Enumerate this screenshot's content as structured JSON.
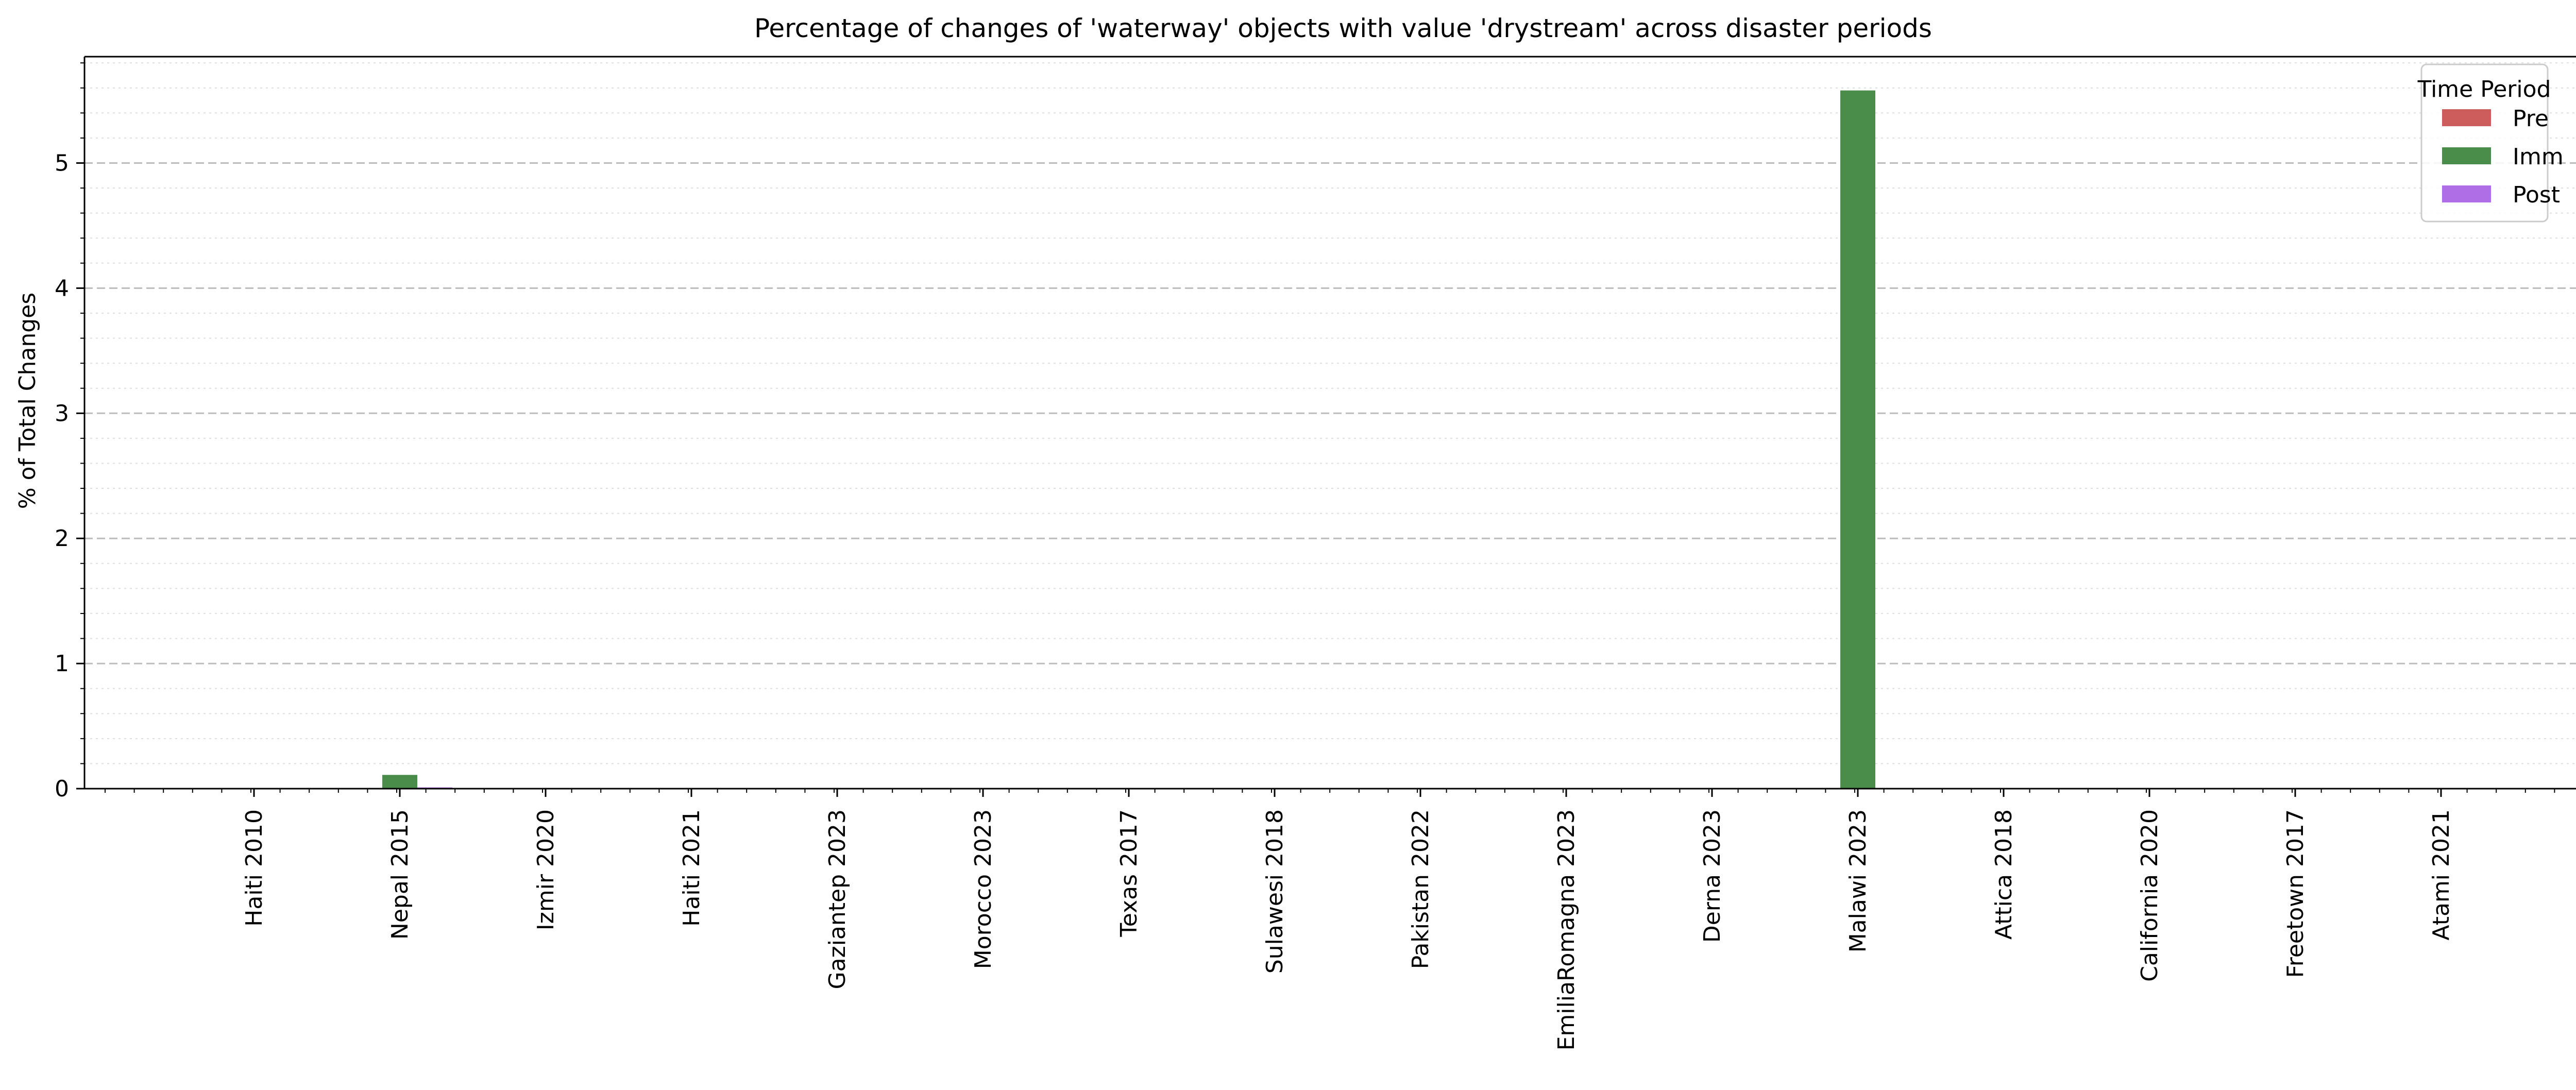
{
  "chart_data": {
    "type": "bar",
    "title": "Percentage of changes of 'waterway' objects with value 'drystream' across disaster periods",
    "xlabel": "",
    "ylabel": "% of Total Changes",
    "categories": [
      "Haiti 2010",
      "Nepal 2015",
      "Izmir 2020",
      "Haiti 2021",
      "Gaziantep 2023",
      "Morocco 2023",
      "Texas 2017",
      "Sulawesi 2018",
      "Pakistan 2022",
      "EmiliaRomagna 2023",
      "Derna 2023",
      "Malawi 2023",
      "Attica 2018",
      "California 2020",
      "Freetown 2017",
      "Atami 2021"
    ],
    "series": [
      {
        "name": "Pre",
        "color": "#cd5c5c",
        "values": [
          0,
          0,
          0,
          0,
          0,
          0,
          0,
          0,
          0,
          0,
          0,
          0,
          0,
          0,
          0,
          0
        ]
      },
      {
        "name": "Imm",
        "color": "#4a8c4a",
        "values": [
          0,
          0.11,
          0,
          0,
          0,
          0,
          0,
          0,
          0,
          0,
          0,
          5.58,
          0,
          0,
          0,
          0
        ]
      },
      {
        "name": "Post",
        "color": "#b06ee6",
        "values": [
          0,
          0.01,
          0,
          0,
          0,
          0,
          0,
          0,
          0,
          0,
          0,
          0,
          0,
          0,
          0,
          0
        ]
      }
    ],
    "ylim": [
      0,
      5.85
    ],
    "yticks": [
      0,
      1,
      2,
      3,
      4,
      5
    ],
    "legend": {
      "title": "Time Period",
      "placement": "top-right"
    },
    "grid": {
      "major_y": true,
      "minor_y": true,
      "style": "dashed"
    }
  }
}
